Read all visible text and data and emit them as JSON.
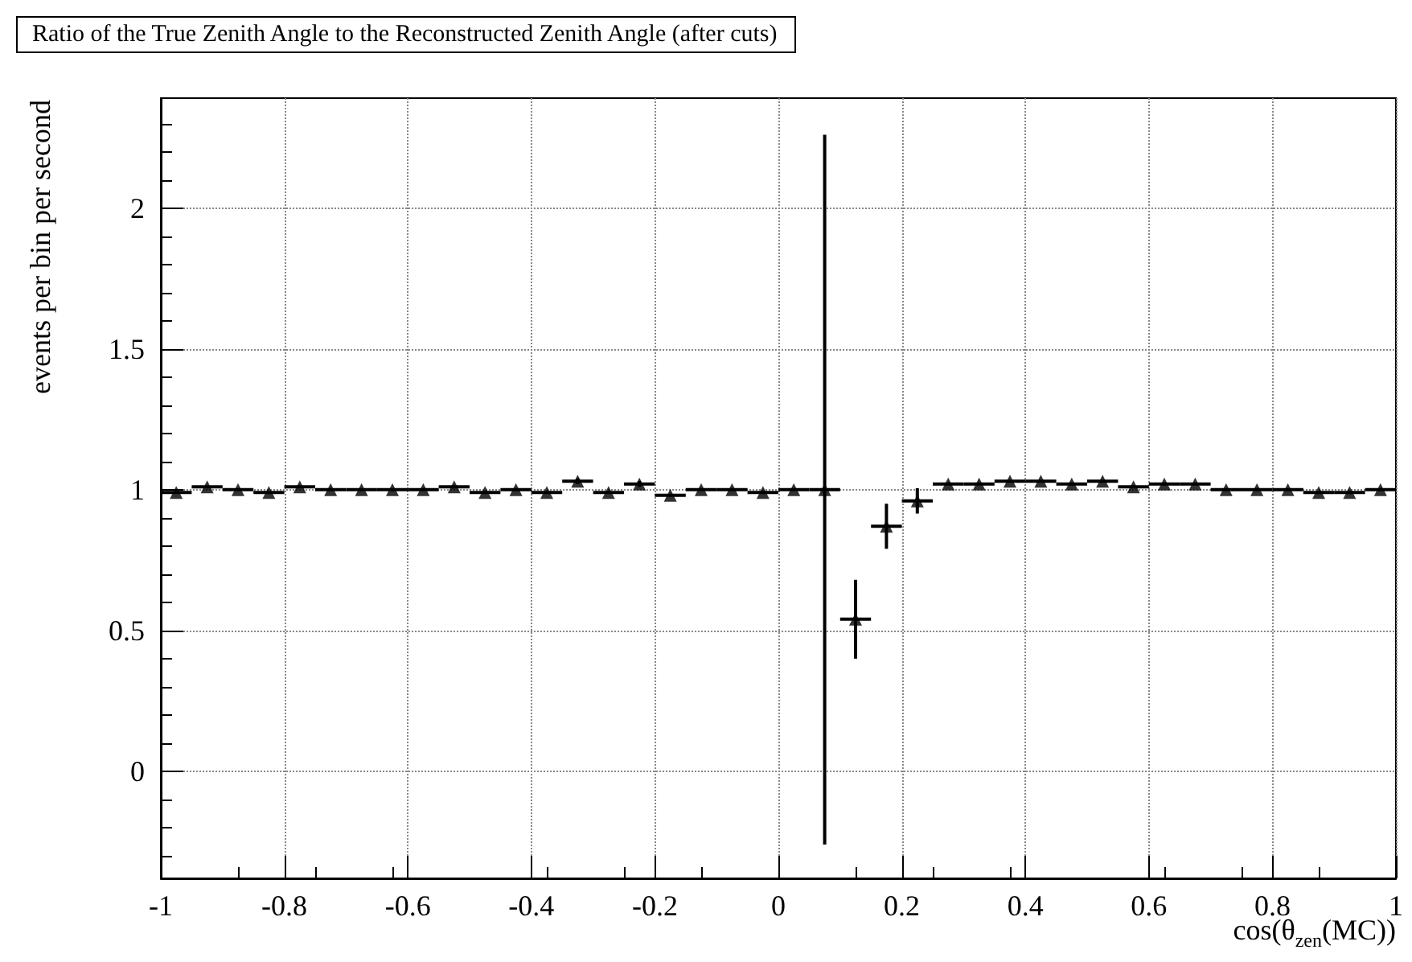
{
  "chart_data": {
    "type": "scatter",
    "title": "Ratio of the True Zenith Angle to the Reconstructed Zenith Angle (after cuts)",
    "xlabel": "cos(θ$_{zen}$(MC))",
    "ylabel": "events per bin per second",
    "x": [
      -0.975,
      -0.925,
      -0.875,
      -0.825,
      -0.775,
      -0.725,
      -0.675,
      -0.625,
      -0.575,
      -0.525,
      -0.475,
      -0.425,
      -0.375,
      -0.325,
      -0.275,
      -0.225,
      -0.175,
      -0.125,
      -0.075,
      -0.025,
      0.025,
      0.075,
      0.125,
      0.175,
      0.225,
      0.275,
      0.325,
      0.375,
      0.425,
      0.475,
      0.525,
      0.575,
      0.625,
      0.675,
      0.725,
      0.775,
      0.825,
      0.875,
      0.925,
      0.975
    ],
    "series": [
      {
        "color": "#000000",
        "values": [
          0.99,
          1.01,
          1.0,
          0.99,
          1.01,
          1.0,
          1.0,
          1.0,
          1.0,
          1.01,
          0.99,
          1.0,
          0.99,
          1.03,
          0.99,
          1.02,
          0.98,
          1.0,
          1.0,
          0.99,
          1.0,
          1.0,
          0.54,
          0.87,
          0.96,
          1.02,
          1.02,
          1.03,
          1.03,
          1.02,
          1.03,
          1.01,
          1.02,
          1.02,
          1.0,
          1.0,
          1.0,
          0.99,
          0.99,
          1.0
        ],
        "errors": [
          null,
          null,
          null,
          null,
          null,
          null,
          null,
          null,
          null,
          null,
          null,
          null,
          null,
          0.01,
          null,
          0.01,
          null,
          null,
          null,
          null,
          null,
          1.26,
          0.14,
          0.08,
          0.045,
          null,
          null,
          null,
          null,
          null,
          null,
          null,
          null,
          null,
          null,
          null,
          null,
          null,
          null,
          null
        ],
        "xerrors": [
          0.025,
          0.025,
          0.025,
          0.025,
          0.025,
          0.025,
          0.025,
          0.025,
          0.025,
          0.025,
          0.025,
          0.025,
          0.025,
          0.025,
          0.025,
          0.025,
          0.025,
          0.025,
          0.025,
          0.025,
          0.025,
          0.025,
          0.025,
          0.025,
          0.025,
          0.025,
          0.025,
          0.025,
          0.025,
          0.025,
          0.025,
          0.025,
          0.025,
          0.025,
          0.025,
          0.025,
          0.025,
          0.025,
          0.025,
          0.025
        ]
      }
    ],
    "marker": "triangle",
    "grid": true,
    "xlim": [
      -1,
      1
    ],
    "xticks": [
      -1,
      -0.8,
      -0.6,
      -0.4,
      -0.2,
      0,
      0.2,
      0.4,
      0.6,
      0.8,
      1
    ],
    "ylim": [
      -0.38,
      2.39
    ],
    "yticks": [
      0,
      0.5,
      1,
      1.5,
      2
    ]
  }
}
